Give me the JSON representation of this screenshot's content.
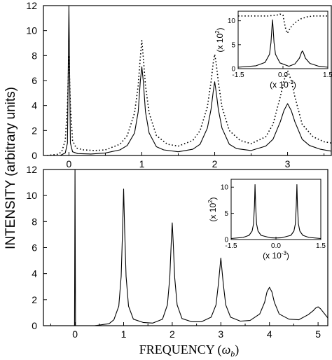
{
  "figure": {
    "ylabel": "INTENSITY (arbitrary units)",
    "xlabel_prefix": "FREQUENCY (",
    "xlabel_symbol": "ω",
    "xlabel_sub": "b",
    "xlabel_suffix": ")"
  },
  "chart_data": [
    {
      "id": "top",
      "type": "line",
      "xlim": [
        -0.35,
        3.6
      ],
      "ylim": [
        0,
        12
      ],
      "xticks": [
        0,
        1,
        2,
        3
      ],
      "yticks": [
        0,
        2,
        4,
        6,
        8,
        10,
        12
      ],
      "series": [
        {
          "style": "solid",
          "x": [
            -0.25,
            -0.12,
            -0.05,
            -0.02,
            0,
            0.02,
            0.05,
            0.12,
            0.3,
            0.5,
            0.7,
            0.8,
            0.9,
            0.95,
            0.98,
            1,
            1.02,
            1.05,
            1.1,
            1.2,
            1.3,
            1.5,
            1.7,
            1.8,
            1.9,
            1.95,
            1.98,
            2,
            2.02,
            2.05,
            2.1,
            2.2,
            2.3,
            2.5,
            2.7,
            2.8,
            2.9,
            2.95,
            3,
            3.05,
            3.1,
            3.2,
            3.3,
            3.45,
            3.6
          ],
          "y": [
            0,
            0,
            0.2,
            1,
            12,
            1,
            0.3,
            0.15,
            0.12,
            0.2,
            0.45,
            0.8,
            1.8,
            3.5,
            6,
            7.1,
            6,
            3.5,
            1.8,
            0.7,
            0.45,
            0.3,
            0.5,
            0.9,
            2.2,
            3.7,
            5.1,
            5.9,
            5.1,
            3.7,
            2.2,
            0.9,
            0.55,
            0.4,
            0.75,
            1.3,
            2.7,
            3.6,
            4.15,
            3.6,
            2.7,
            1.3,
            0.8,
            0.5,
            0.35
          ]
        },
        {
          "style": "dotted",
          "x": [
            -0.3,
            -0.15,
            -0.1,
            -0.05,
            -0.02,
            0,
            0.02,
            0.05,
            0.1,
            0.2,
            0.35,
            0.5,
            0.7,
            0.8,
            0.9,
            0.95,
            0.98,
            1,
            1.02,
            1.05,
            1.1,
            1.2,
            1.35,
            1.5,
            1.7,
            1.8,
            1.9,
            1.95,
            1.98,
            2,
            2.02,
            2.05,
            2.1,
            2.2,
            2.35,
            2.5,
            2.7,
            2.8,
            2.9,
            2.95,
            3,
            3.05,
            3.1,
            3.2,
            3.35,
            3.5,
            3.6
          ],
          "y": [
            0,
            0.1,
            0.3,
            1.2,
            4,
            8,
            4,
            1.2,
            0.6,
            0.45,
            0.4,
            0.45,
            0.9,
            1.6,
            3.4,
            5.6,
            7.9,
            9.2,
            7.9,
            5.6,
            3.4,
            1.6,
            0.9,
            0.75,
            1.2,
            2,
            3.9,
            5.9,
            7.4,
            8.1,
            7.4,
            5.9,
            3.9,
            2,
            1.2,
            0.95,
            1.5,
            2.5,
            4.7,
            6,
            6.8,
            6,
            4.7,
            2.5,
            1.5,
            1.1,
            1
          ]
        }
      ],
      "inset": {
        "xlim": [
          -1.5,
          1.5
        ],
        "ylim": [
          0,
          12
        ],
        "xticks": [
          -1.5,
          0,
          1.5
        ],
        "xtick_labels": [
          "-1.5",
          "0.0",
          "1.5"
        ],
        "yticks": [
          0,
          5,
          10
        ],
        "xscale_label": "(x 10",
        "xscale_exp": "-3",
        "yscale_label": "(x 10",
        "yscale_exp": "2",
        "series": [
          {
            "style": "solid",
            "x": [
              -1.5,
              -0.9,
              -0.6,
              -0.45,
              -0.4,
              -0.37,
              -0.35,
              -0.33,
              -0.3,
              -0.25,
              -0.1,
              0.2,
              0.4,
              0.55,
              0.62,
              0.65,
              0.68,
              0.75,
              0.9,
              1.2,
              1.5
            ],
            "y": [
              0.3,
              0.6,
              1.3,
              3,
              5.5,
              8.5,
              10.2,
              8.5,
              5.5,
              3,
              1.2,
              0.5,
              1,
              2.2,
              3.4,
              3.7,
              3.4,
              2.2,
              1.1,
              0.5,
              0.3
            ]
          },
          {
            "style": "dotted",
            "x": [
              -1.5,
              -0.5,
              -0.2,
              -0.1,
              0,
              0.05,
              0.1,
              0.15,
              0.2,
              0.3,
              0.45,
              0.6,
              0.8,
              1,
              1.5
            ],
            "y": [
              11,
              11,
              11.2,
              11.4,
              11.2,
              9.5,
              8,
              7.4,
              8,
              9,
              9.8,
              10.4,
              10.8,
              11,
              11
            ]
          }
        ]
      }
    },
    {
      "id": "bottom",
      "type": "line",
      "xlim": [
        -0.65,
        5.2
      ],
      "ylim": [
        0,
        12
      ],
      "xticks": [
        0,
        1,
        2,
        3,
        4,
        5
      ],
      "yticks": [
        0,
        2,
        4,
        6,
        8,
        10,
        12
      ],
      "series": [
        {
          "style": "solid",
          "x": [
            -0.65,
            -0.05,
            -0.01,
            0,
            0.01,
            0.05,
            0.4,
            0.7,
            0.8,
            0.9,
            0.95,
            0.98,
            1,
            1.02,
            1.05,
            1.1,
            1.2,
            1.4,
            1.6,
            1.8,
            1.9,
            1.95,
            1.98,
            2,
            2.02,
            2.05,
            2.1,
            2.2,
            2.4,
            2.6,
            2.8,
            2.9,
            2.95,
            3,
            3.05,
            3.1,
            3.2,
            3.4,
            3.6,
            3.8,
            3.9,
            3.95,
            4,
            4.05,
            4.1,
            4.2,
            4.4,
            4.6,
            4.8,
            4.9,
            4.95,
            5,
            5.05,
            5.2
          ],
          "y": [
            0,
            0,
            0,
            12,
            0,
            0,
            0,
            0.15,
            0.45,
            1.5,
            3.8,
            7.5,
            10.5,
            7.5,
            3.8,
            1.5,
            0.5,
            0.25,
            0.2,
            0.5,
            1.6,
            3.7,
            6.4,
            7.9,
            6.4,
            3.7,
            1.6,
            0.55,
            0.3,
            0.3,
            0.65,
            1.6,
            3.2,
            5.2,
            3.2,
            1.6,
            0.65,
            0.35,
            0.4,
            0.9,
            1.8,
            2.6,
            2.95,
            2.6,
            1.8,
            0.9,
            0.5,
            0.45,
            0.85,
            1.15,
            1.35,
            1.45,
            1.3,
            0.6
          ]
        }
      ],
      "inset": {
        "xlim": [
          -1.5,
          1.5
        ],
        "ylim": [
          0,
          11.5
        ],
        "xticks": [
          -1.5,
          0,
          1.5
        ],
        "xtick_labels": [
          "-1.5",
          "0.0",
          "1.5"
        ],
        "yticks": [
          0,
          5,
          10
        ],
        "xscale_label": "(x 10",
        "xscale_exp": "-3",
        "yscale_label": "(x 10",
        "yscale_exp": "2",
        "series": [
          {
            "style": "solid",
            "x": [
              -1.5,
              -1.1,
              -0.9,
              -0.8,
              -0.75,
              -0.72,
              -0.7,
              -0.68,
              -0.65,
              -0.6,
              -0.5,
              -0.2,
              0,
              0.2,
              0.5,
              0.6,
              0.65,
              0.68,
              0.7,
              0.72,
              0.75,
              0.8,
              0.9,
              1.1,
              1.5
            ],
            "y": [
              0.2,
              0.4,
              0.8,
              1.6,
              3,
              6.5,
              10.5,
              6.5,
              3,
              1.6,
              0.8,
              0.35,
              0.3,
              0.35,
              0.8,
              1.6,
              3,
              6.5,
              10.5,
              6.5,
              3,
              1.6,
              0.8,
              0.4,
              0.2
            ]
          }
        ]
      }
    }
  ]
}
